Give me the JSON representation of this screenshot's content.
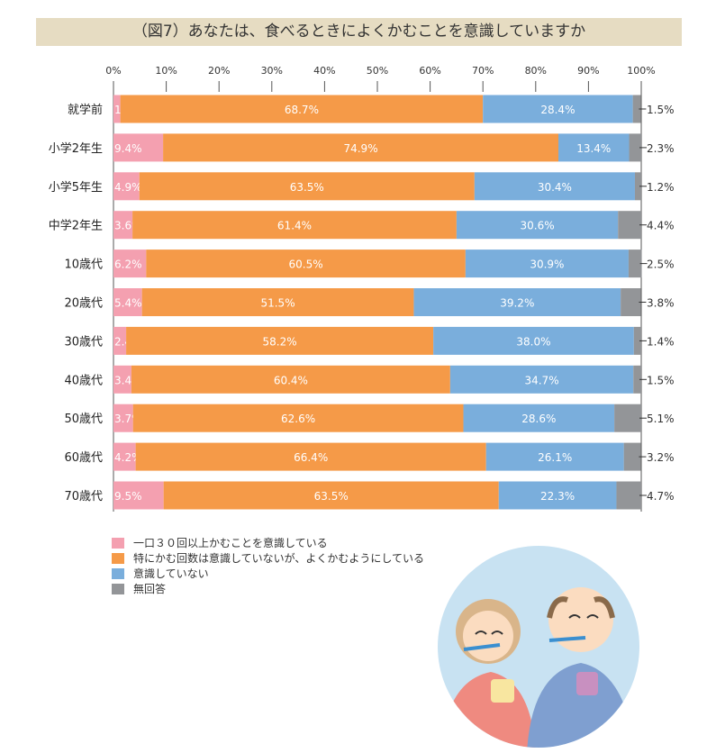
{
  "chart_data": {
    "type": "bar",
    "orientation": "horizontal-stacked",
    "title": "（図7）あなたは、食べるときによくかむことを意識していますか",
    "xlim": [
      0,
      100
    ],
    "xticks": [
      "0%",
      "10%",
      "20%",
      "30%",
      "40%",
      "50%",
      "60%",
      "70%",
      "80%",
      "90%",
      "100%"
    ],
    "categories": [
      "就学前",
      "小学2年生",
      "小学5年生",
      "中学2年生",
      "10歳代",
      "20歳代",
      "30歳代",
      "40歳代",
      "50歳代",
      "60歳代",
      "70歳代"
    ],
    "series": [
      {
        "name": "一口３０回以上かむことを意識している",
        "color": "#f4a0b0",
        "values": [
          1.3,
          9.4,
          4.9,
          3.6,
          6.2,
          5.4,
          2.4,
          3.4,
          3.7,
          4.2,
          9.5
        ]
      },
      {
        "name": "特にかむ回数は意識していないが、よくかむようにしている",
        "color": "#f59a48",
        "values": [
          68.7,
          74.9,
          63.5,
          61.4,
          60.5,
          51.5,
          58.2,
          60.4,
          62.6,
          66.4,
          63.5
        ]
      },
      {
        "name": "意識していない",
        "color": "#7aaedc",
        "values": [
          28.4,
          13.4,
          30.4,
          30.6,
          30.9,
          39.2,
          38.0,
          34.7,
          28.6,
          26.1,
          22.3
        ]
      },
      {
        "name": "無回答",
        "color": "#939598",
        "values": [
          1.5,
          2.3,
          1.2,
          4.4,
          2.5,
          3.8,
          1.4,
          1.5,
          5.1,
          3.2,
          4.7
        ]
      }
    ],
    "legend": "bottom-left",
    "grid": false
  }
}
